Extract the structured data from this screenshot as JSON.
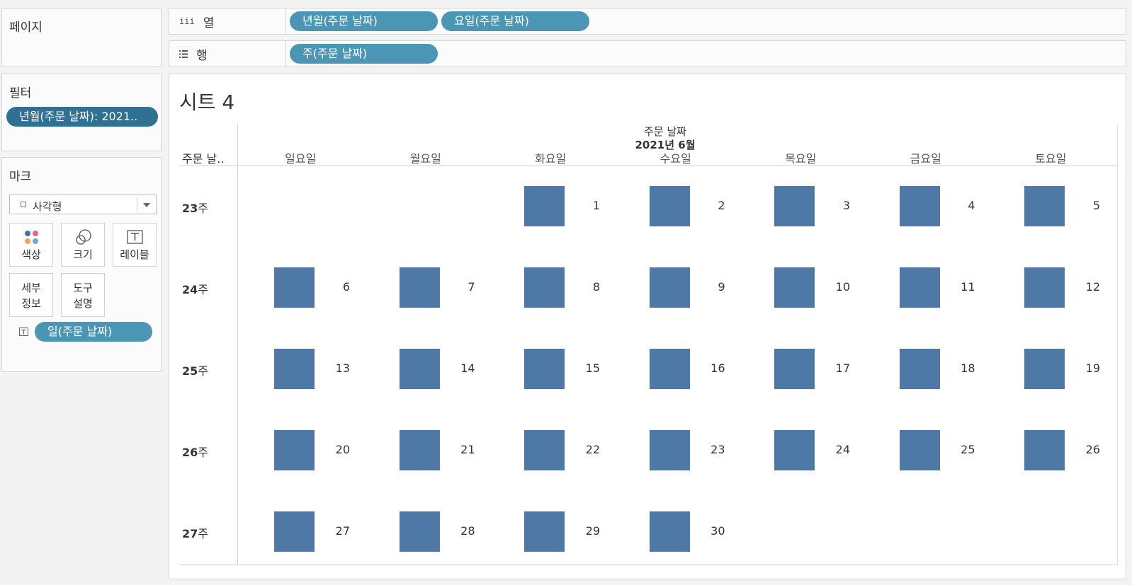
{
  "pages_panel": {
    "title": "페이지"
  },
  "filters_panel": {
    "title": "필터",
    "pill": "년월(주문 날짜): 2021.."
  },
  "marks_panel": {
    "title": "마크",
    "mark_type": "사각형",
    "buttons": {
      "color": "색상",
      "size": "크기",
      "label": "레이블",
      "detail_1": "세부",
      "detail_2": "정보",
      "tooltip_1": "도구",
      "tooltip_2": "설명"
    },
    "field_pill": "일(주문 날짜)",
    "colors": {
      "color_dot_1": "#4e6fa5",
      "color_dot_2": "#e06b80",
      "color_dot_3": "#f4a261",
      "color_dot_4": "#7aa3d0"
    }
  },
  "columns_shelf": {
    "label": "열",
    "icon": "iii",
    "pills": [
      "년월(주문 날짜)",
      "요일(주문 날짜)"
    ]
  },
  "rows_shelf": {
    "label": "행",
    "icon": "list-icon",
    "pills": [
      "주(주문 날짜)"
    ]
  },
  "view": {
    "title": "시트 4",
    "header_field": "주문 날짜",
    "header_period": "2021년 6월",
    "row_header": "주문 날..",
    "days": [
      "일요일",
      "월요일",
      "화요일",
      "수요일",
      "목요일",
      "금요일",
      "토요일"
    ],
    "weeks": [
      {
        "num": "23",
        "suffix": "주",
        "cells": [
          "",
          "",
          "1",
          "2",
          "3",
          "4",
          "5"
        ]
      },
      {
        "num": "24",
        "suffix": "주",
        "cells": [
          "6",
          "7",
          "8",
          "9",
          "10",
          "11",
          "12"
        ]
      },
      {
        "num": "25",
        "suffix": "주",
        "cells": [
          "13",
          "14",
          "15",
          "16",
          "17",
          "18",
          "19"
        ]
      },
      {
        "num": "26",
        "suffix": "주",
        "cells": [
          "20",
          "21",
          "22",
          "23",
          "24",
          "25",
          "26"
        ]
      },
      {
        "num": "27",
        "suffix": "주",
        "cells": [
          "27",
          "28",
          "29",
          "30",
          "",
          "",
          ""
        ]
      }
    ],
    "mark_color": "#4e79a7"
  }
}
